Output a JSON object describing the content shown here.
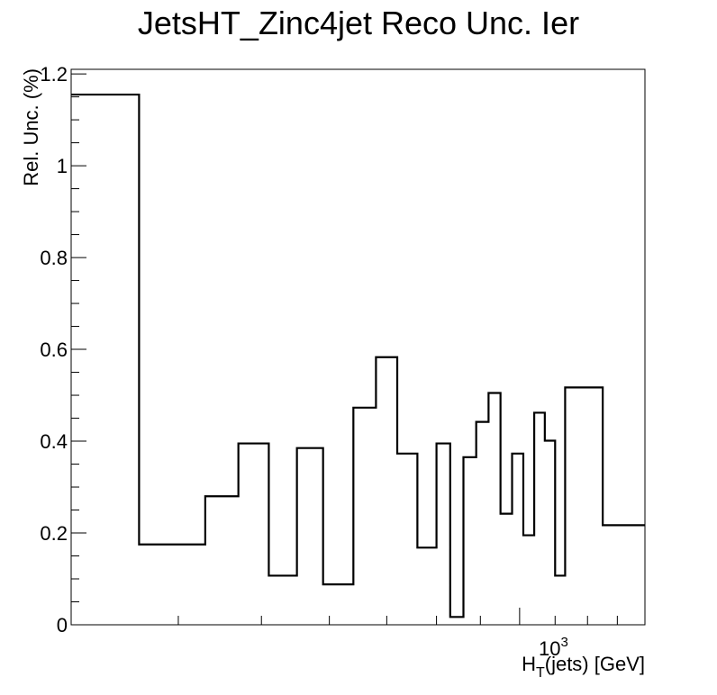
{
  "chart_data": {
    "type": "histogram-step",
    "title": "JetsHT_Zinc4jet Reco Unc. Ier",
    "xlabel": {
      "main": "H",
      "sub": "T",
      "rest": "(jets) [GeV]"
    },
    "ylabel": "Rel. Unc. (%)",
    "x_scale": "log",
    "x_tick_label": {
      "base": "10",
      "exp": "3"
    },
    "ylim": [
      0,
      1.21
    ],
    "y_ticks": [
      {
        "value": 0,
        "label": "0"
      },
      {
        "value": 0.2,
        "label": "0.2"
      },
      {
        "value": 0.4,
        "label": "0.4"
      },
      {
        "value": 0.6,
        "label": "0.6"
      },
      {
        "value": 0.8,
        "label": "0.8"
      },
      {
        "value": 1.0,
        "label": "1"
      },
      {
        "value": 1.2,
        "label": "1.2"
      }
    ],
    "bins": [
      {
        "x_low": 300,
        "x_high": 360,
        "value": 1.155
      },
      {
        "x_low": 360,
        "x_high": 430,
        "value": 0.175
      },
      {
        "x_low": 430,
        "x_high": 470,
        "value": 0.28
      },
      {
        "x_low": 470,
        "x_high": 510,
        "value": 0.395
      },
      {
        "x_low": 510,
        "x_high": 550,
        "value": 0.107
      },
      {
        "x_low": 550,
        "x_high": 590,
        "value": 0.385
      },
      {
        "x_low": 590,
        "x_high": 640,
        "value": 0.088
      },
      {
        "x_low": 640,
        "x_high": 680,
        "value": 0.473
      },
      {
        "x_low": 680,
        "x_high": 720,
        "value": 0.583
      },
      {
        "x_low": 720,
        "x_high": 760,
        "value": 0.373
      },
      {
        "x_low": 760,
        "x_high": 800,
        "value": 0.168
      },
      {
        "x_low": 800,
        "x_high": 830,
        "value": 0.395
      },
      {
        "x_low": 830,
        "x_high": 860,
        "value": 0.017
      },
      {
        "x_low": 860,
        "x_high": 890,
        "value": 0.365
      },
      {
        "x_low": 890,
        "x_high": 920,
        "value": 0.442
      },
      {
        "x_low": 920,
        "x_high": 950,
        "value": 0.505
      },
      {
        "x_low": 950,
        "x_high": 980,
        "value": 0.242
      },
      {
        "x_low": 980,
        "x_high": 1010,
        "value": 0.373
      },
      {
        "x_low": 1010,
        "x_high": 1040,
        "value": 0.195
      },
      {
        "x_low": 1040,
        "x_high": 1070,
        "value": 0.462
      },
      {
        "x_low": 1070,
        "x_high": 1100,
        "value": 0.401
      },
      {
        "x_low": 1100,
        "x_high": 1130,
        "value": 0.107
      },
      {
        "x_low": 1130,
        "x_high": 1250,
        "value": 0.517
      },
      {
        "x_low": 1250,
        "x_high": 1400,
        "value": 0.217
      }
    ],
    "grid": false,
    "legend": "none",
    "line_color": "#000000"
  }
}
